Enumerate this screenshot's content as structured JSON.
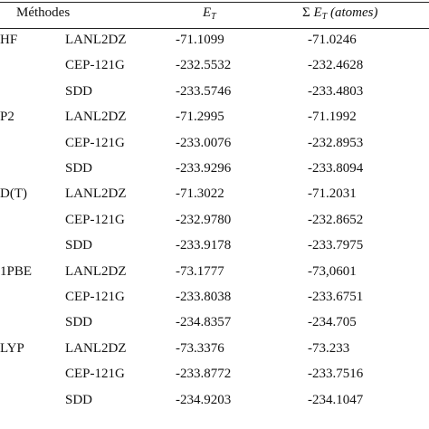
{
  "header": {
    "methods": "Méthodes",
    "et_main": "E",
    "et_sub": "T",
    "set_sigma": "Σ",
    "set_main": "E",
    "set_sub": "T",
    "set_paren": "(atomes)"
  },
  "rows": [
    {
      "method": "HF",
      "basis": "LANL2DZ",
      "et": "-71.1099",
      "set": "-71.0246"
    },
    {
      "method": "",
      "basis": "CEP-121G",
      "et": "-232.5532",
      "set": "-232.4628"
    },
    {
      "method": "",
      "basis": "SDD",
      "et": "-233.5746",
      "set": "-233.4803"
    },
    {
      "method": "P2",
      "basis": "LANL2DZ",
      "et": "-71.2995",
      "set": "-71.1992"
    },
    {
      "method": "",
      "basis": "CEP-121G",
      "et": "-233.0076",
      "set": "-232.8953"
    },
    {
      "method": "",
      "basis": "SDD",
      "et": "-233.9296",
      "set": "-233.8094"
    },
    {
      "method": "D(T)",
      "basis": "LANL2DZ",
      "et": "-71.3022",
      "set": "-71.2031"
    },
    {
      "method": "",
      "basis": "CEP-121G",
      "et": "-232.9780",
      "set": "-232.8652"
    },
    {
      "method": "",
      "basis": "SDD",
      "et": "-233.9178",
      "set": "-233.7975"
    },
    {
      "method": "1PBE",
      "basis": "LANL2DZ",
      "et": "-73.1777",
      "set": "-73,0601"
    },
    {
      "method": "",
      "basis": "CEP-121G",
      "et": "-233.8038",
      "set": "-233.6751"
    },
    {
      "method": "",
      "basis": "SDD",
      "et": "-234.8357",
      "set": "-234.705"
    },
    {
      "method": "LYP",
      "basis": "LANL2DZ",
      "et": "-73.3376",
      "set": "-73.233"
    },
    {
      "method": "",
      "basis": "CEP-121G",
      "et": "-233.8772",
      "set": "-233.7516"
    },
    {
      "method": "",
      "basis": "SDD",
      "et": "-234.9203",
      "set": "-234.1047"
    }
  ]
}
